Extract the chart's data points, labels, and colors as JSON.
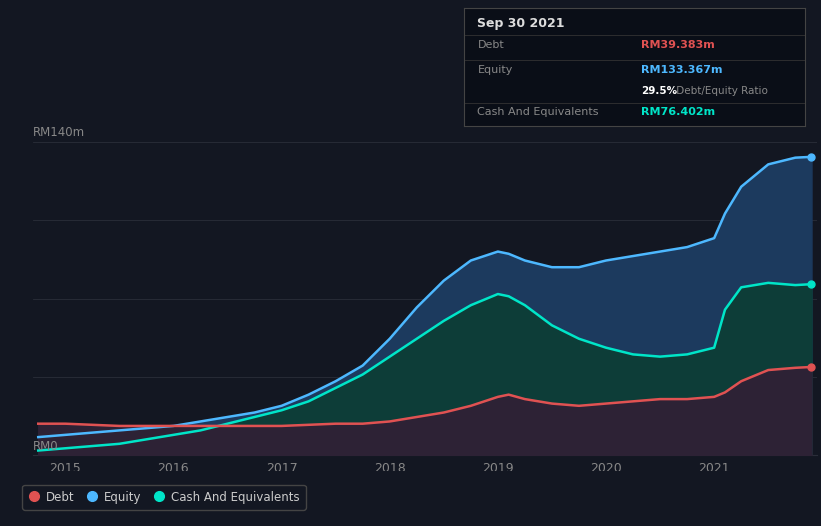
{
  "bg_color": "#131722",
  "grid_color": "#2a2e39",
  "debt_color": "#e05252",
  "equity_color": "#4db8ff",
  "cash_color": "#00e5c8",
  "equity_fill_color": "#1c3a5e",
  "cash_fill_color": "#0d3d38",
  "debt_fill_color": "#2d2235",
  "xlabel_ticks": [
    2015,
    2016,
    2017,
    2018,
    2019,
    2020,
    2021
  ],
  "ylim": [
    0,
    140
  ],
  "xlim": [
    2014.7,
    2021.95
  ],
  "years": [
    2014.75,
    2015.0,
    2015.25,
    2015.5,
    2015.75,
    2016.0,
    2016.25,
    2016.5,
    2016.75,
    2017.0,
    2017.25,
    2017.5,
    2017.75,
    2018.0,
    2018.25,
    2018.5,
    2018.75,
    2019.0,
    2019.1,
    2019.25,
    2019.5,
    2019.75,
    2020.0,
    2020.25,
    2020.5,
    2020.75,
    2021.0,
    2021.1,
    2021.25,
    2021.5,
    2021.75,
    2021.9
  ],
  "equity": [
    8,
    9,
    10,
    11,
    12,
    13,
    15,
    17,
    19,
    22,
    27,
    33,
    40,
    52,
    66,
    78,
    87,
    91,
    90,
    87,
    84,
    84,
    87,
    89,
    91,
    93,
    97,
    108,
    120,
    130,
    133,
    133.367
  ],
  "cash": [
    2,
    3,
    4,
    5,
    7,
    9,
    11,
    14,
    17,
    20,
    24,
    30,
    36,
    44,
    52,
    60,
    67,
    72,
    71,
    67,
    58,
    52,
    48,
    45,
    44,
    45,
    48,
    65,
    75,
    77,
    76,
    76.402
  ],
  "debt": [
    14,
    14,
    13.5,
    13,
    13,
    13,
    13,
    13,
    13,
    13,
    13.5,
    14,
    14,
    15,
    17,
    19,
    22,
    26,
    27,
    25,
    23,
    22,
    23,
    24,
    25,
    25,
    26,
    28,
    33,
    38,
    39,
    39.383
  ],
  "legend_items": [
    {
      "label": "Debt",
      "color": "#e05252"
    },
    {
      "label": "Equity",
      "color": "#4db8ff"
    },
    {
      "label": "Cash And Equivalents",
      "color": "#00e5c8"
    }
  ],
  "tooltip": {
    "date": "Sep 30 2021",
    "debt_label": "Debt",
    "debt_value": "RM39.383m",
    "equity_label": "Equity",
    "equity_value": "RM133.367m",
    "ratio_text_bold": "29.5%",
    "ratio_text_normal": " Debt/Equity Ratio",
    "cash_label": "Cash And Equivalents",
    "cash_value": "RM76.402m",
    "debt_color": "#e05252",
    "equity_color": "#4db8ff",
    "cash_color": "#00e5c8",
    "bg_color": "#0a0e17",
    "border_color": "#444444",
    "text_color": "#888888",
    "title_color": "#dddddd",
    "white_color": "#ffffff"
  }
}
